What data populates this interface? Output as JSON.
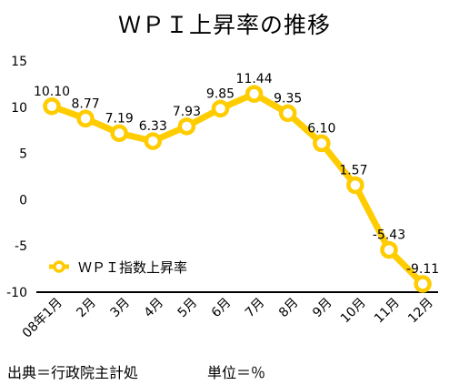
{
  "chart_data": {
    "type": "line",
    "title": "ＷＰＩ上昇率の推移",
    "categories": [
      "08年1月",
      "2月",
      "3月",
      "4月",
      "5月",
      "6月",
      "7月",
      "8月",
      "9月",
      "10月",
      "11月",
      "12月"
    ],
    "series": [
      {
        "name": "ＷＰＩ指数上昇率",
        "values": [
          10.1,
          8.77,
          7.19,
          6.33,
          7.93,
          9.85,
          11.44,
          9.35,
          6.1,
          1.57,
          -5.43,
          -9.11
        ],
        "labels": [
          "10.10",
          "8.77",
          "7.19",
          "6.33",
          "7.93",
          "9.85",
          "11.44",
          "9.35",
          "6.10",
          "1.57",
          "-5.43",
          "-9.11"
        ],
        "color": "#FFCC00"
      }
    ],
    "ylim": [
      -10,
      15
    ],
    "yticks": [
      "15",
      "10",
      "5",
      "0",
      "-5",
      "-10"
    ],
    "xlabel": "",
    "ylabel": "",
    "grid": false,
    "legend_position": "lower-left"
  },
  "footer": {
    "source": "出典＝行政院主計処",
    "unit": "単位＝％"
  }
}
